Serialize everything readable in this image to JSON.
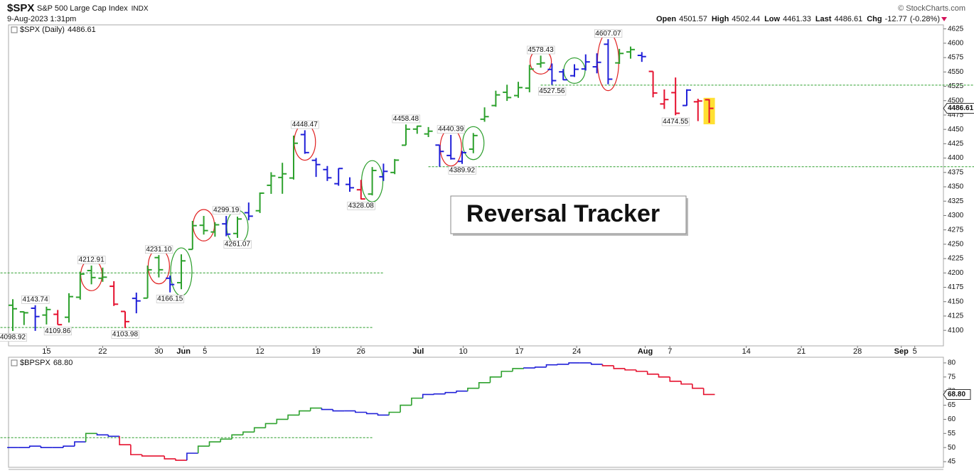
{
  "chart_data": [
    {
      "type": "ohlc",
      "title": "$SPX",
      "subtitle": "S&P 500 Large Cap Index",
      "exchange": "INDX",
      "date": "9-Aug-2023 1:31pm",
      "credit": "© StockCharts.com",
      "quote_labels": [
        "Open",
        "High",
        "Low",
        "Last",
        "Chg"
      ],
      "change": -12.77,
      "change_label": "(-0.28%)",
      "annotation": "Reversal Tracker",
      "x": [
        0,
        1,
        2,
        3,
        4,
        5,
        6,
        7,
        8,
        9,
        10,
        11,
        12,
        13,
        14,
        15,
        16,
        17,
        18,
        19,
        20,
        21,
        22,
        23,
        24,
        25,
        26,
        27,
        28,
        29,
        30,
        31,
        32,
        33,
        34,
        35,
        36,
        37,
        38,
        39,
        40,
        41,
        42,
        43,
        44,
        45,
        46,
        47,
        48,
        49,
        50,
        51,
        52,
        53,
        54,
        55,
        56,
        57,
        58,
        59,
        60,
        61,
        62
      ],
      "xlim": [
        -0.38,
        82.85
      ],
      "xticks": [
        {
          "value": 3,
          "label": "15"
        },
        {
          "value": 8,
          "label": "22"
        },
        {
          "value": 13,
          "label": "30"
        },
        {
          "value": 15.2,
          "label": "Jun"
        },
        {
          "value": 17.1,
          "label": "5"
        },
        {
          "value": 22,
          "label": "12"
        },
        {
          "value": 27,
          "label": "19"
        },
        {
          "value": 31,
          "label": "26"
        },
        {
          "value": 36.1,
          "label": "Jul"
        },
        {
          "value": 40.1,
          "label": "10"
        },
        {
          "value": 45.1,
          "label": "17"
        },
        {
          "value": 50.2,
          "label": "24"
        },
        {
          "value": 56.3,
          "label": "Aug"
        },
        {
          "value": 58.5,
          "label": "7"
        },
        {
          "value": 65.3,
          "label": "14"
        },
        {
          "value": 70.2,
          "label": "21"
        },
        {
          "value": 75.2,
          "label": "28"
        },
        {
          "value": 79.1,
          "label": "Sep"
        },
        {
          "value": 80.3,
          "label": "5"
        }
      ],
      "ylim": [
        4073,
        4632
      ],
      "yticks": [
        4100,
        4125,
        4150,
        4175,
        4200,
        4225,
        4250,
        4275,
        4300,
        4325,
        4350,
        4375,
        4400,
        4425,
        4450,
        4475,
        4500,
        4525,
        4550,
        4575,
        4600,
        4625
      ],
      "series": [
        {
          "name": "$SPX (Daily)",
          "open": [
            4143.74,
            4132.24,
            4138.54,
            4126.65,
            4127.95,
            4122.85,
            4157.68,
            4204.15,
            4190.78,
            4176.8,
            4132.96,
            4155.71,
            4156.16,
            4226.71,
            4190.74,
            4183.03,
            4241.01,
            4282.99,
            4271.34,
            4285.47,
            4268.69,
            4304.88,
            4308.32,
            4352.61,
            4366.29,
            4365.33,
            4440.95,
            4396.11,
            4380.01,
            4355.4,
            4354.17,
            4344.84,
            4337.36,
            4367.48,
            4374.94,
            4422.44,
            4450.48,
            4442.04,
            4422.62,
            4404.54,
            4394.23,
            4415.55,
            4467.69,
            4491.5,
            4514.61,
            4508.86,
            4521.78,
            4563.87,
            4554.38,
            4550.16,
            4543.39,
            4555.19,
            4558.96,
            4598.26,
            4565.75,
            4584.82,
            4578.83,
            4550.93,
            4494.27,
            4513.96,
            4491.58,
            4498.03,
            4501.57
          ],
          "high": [
            4154.28,
            4132.8,
            4143.74,
            4141.25,
            4135.54,
            4164.67,
            4202.2,
            4212.91,
            4209.22,
            4185.68,
            4132.96,
            4165.74,
            4212.87,
            4231.1,
            4195.44,
            4232.43,
            4290.67,
            4299.28,
            4288.33,
            4299.19,
            4298.01,
            4322.62,
            4340.13,
            4375.37,
            4391.82,
            4439.2,
            4448.47,
            4400.15,
            4386.22,
            4382.25,
            4366.55,
            4362.06,
            4384.42,
            4390.35,
            4398.39,
            4458.48,
            4456.46,
            4454.06,
            4422.62,
            4440.39,
            4412.6,
            4443.64,
            4488.34,
            4517.38,
            4527.76,
            4532.85,
            4562.3,
            4578.43,
            4564.74,
            4555,
            4563.41,
            4580.62,
            4582.47,
            4607.07,
            4590.16,
            4594.22,
            4584.62,
            4550.93,
            4519.49,
            4540.34,
            4519.84,
            4503.31,
            4502.44
          ],
          "low": [
            4098.92,
            4109.29,
            4099.12,
            4110.27,
            4109.86,
            4113.62,
            4153.5,
            4180.2,
            4184.5,
            4142.54,
            4103.98,
            4129.73,
            4156.16,
            4192.18,
            4166.15,
            4171.64,
            4241.01,
            4266.82,
            4263.09,
            4263.96,
            4261.07,
            4291.7,
            4304.37,
            4337.71,
            4337.85,
            4362.6,
            4407.44,
            4367.19,
            4360.14,
            4351.82,
            4341.34,
            4328.08,
            4335,
            4360.22,
            4371.97,
            4422.44,
            4442.29,
            4436.61,
            4385.05,
            4397.4,
            4389.92,
            4408.46,
            4463.23,
            4489.36,
            4499.56,
            4504.9,
            4514.59,
            4557.48,
            4527.56,
            4535.79,
            4541.29,
            4552.42,
            4547.58,
            4528.56,
            4564.01,
            4573.14,
            4567.53,
            4505.75,
            4485.54,
            4474.55,
            4491.15,
            4464.39,
            4461.33
          ],
          "close": [
            4137.64,
            4130.62,
            4124.08,
            4136.28,
            4109.9,
            4158.77,
            4198.05,
            4191.98,
            4192.63,
            4145.58,
            4115.24,
            4151.28,
            4205.45,
            4205.52,
            4179.83,
            4221.02,
            4282.37,
            4273.79,
            4283.85,
            4267.52,
            4293.93,
            4298.86,
            4338.93,
            4369.01,
            4372.59,
            4425.84,
            4409.59,
            4388.71,
            4365.69,
            4381.89,
            4348.33,
            4328.82,
            4378.41,
            4376.86,
            4396.44,
            4450.38,
            4455.59,
            4446.82,
            4411.59,
            4398.95,
            4409.53,
            4439.26,
            4472.16,
            4510.04,
            4505.42,
            4522.79,
            4554.98,
            4565.72,
            4534.87,
            4536.34,
            4554.64,
            4567.46,
            4566.75,
            4537.41,
            4582.23,
            4588.96,
            4576.73,
            4513.39,
            4501.89,
            4478.03,
            4518.44,
            4499.38,
            4486.61
          ],
          "colors": [
            "#2da12d",
            "#2da12d",
            "#2020d8",
            "#2da12d",
            "#e5112f",
            "#2da12d",
            "#2da12d",
            "#2da12d",
            "#2da12d",
            "#e5112f",
            "#e5112f",
            "#2020d8",
            "#2da12d",
            "#2da12d",
            "#2020d8",
            "#2da12d",
            "#2da12d",
            "#2da12d",
            "#2da12d",
            "#2020d8",
            "#2da12d",
            "#2020d8",
            "#2da12d",
            "#2da12d",
            "#2da12d",
            "#2da12d",
            "#2020d8",
            "#2020d8",
            "#2020d8",
            "#2020d8",
            "#2020d8",
            "#e5112f",
            "#2da12d",
            "#2020d8",
            "#2da12d",
            "#2da12d",
            "#2da12d",
            "#2da12d",
            "#2020d8",
            "#2020d8",
            "#2020d8",
            "#2da12d",
            "#2da12d",
            "#2da12d",
            "#2da12d",
            "#2da12d",
            "#2da12d",
            "#2da12d",
            "#2020d8",
            "#2020d8",
            "#2020d8",
            "#2020d8",
            "#2020d8",
            "#2020d8",
            "#2da12d",
            "#2da12d",
            "#2020d8",
            "#e5112f",
            "#e5112f",
            "#e5112f",
            "#2020d8",
            "#e5112f",
            "#e5112f"
          ],
          "high_labels": [
            null,
            null,
            "4143.74",
            null,
            null,
            null,
            null,
            "4212.91",
            null,
            null,
            null,
            null,
            null,
            "4231.10",
            null,
            null,
            null,
            null,
            null,
            "4299.19",
            null,
            null,
            null,
            null,
            null,
            null,
            "4448.47",
            null,
            null,
            null,
            null,
            null,
            null,
            null,
            null,
            "4458.48",
            null,
            null,
            null,
            "4440.39",
            null,
            null,
            null,
            null,
            null,
            null,
            null,
            "4578.43",
            null,
            null,
            null,
            null,
            null,
            "4607.07",
            null,
            null,
            null,
            null,
            null,
            null,
            null,
            null,
            null
          ],
          "low_labels": [
            "4098.92",
            null,
            null,
            null,
            "4109.86",
            null,
            null,
            null,
            null,
            null,
            "4103.98",
            null,
            null,
            null,
            "4166.15",
            null,
            null,
            null,
            null,
            null,
            "4261.07",
            null,
            null,
            null,
            null,
            null,
            null,
            null,
            null,
            null,
            null,
            "4328.08",
            null,
            null,
            null,
            null,
            null,
            null,
            null,
            null,
            "4389.92",
            null,
            null,
            null,
            null,
            null,
            null,
            null,
            "4527.56",
            null,
            null,
            null,
            null,
            null,
            null,
            null,
            null,
            null,
            null,
            "4474.55",
            null,
            null,
            null
          ]
        }
      ],
      "highlight_last": "#ffe033",
      "level_color": "#2a9d2a",
      "levels": [
        {
          "value": 4200,
          "from": -1.1,
          "to": 33
        },
        {
          "value": 4105,
          "from": -1.1,
          "to": 32
        },
        {
          "value": 4527,
          "from": 47,
          "to": 86.3
        },
        {
          "value": 4385,
          "from": 37,
          "to": 86.3
        }
      ],
      "circles": [
        {
          "x": 7,
          "color": "#e02020"
        },
        {
          "x": 13,
          "color": "#e02020"
        },
        {
          "x": 15,
          "color": "#2a9d2a"
        },
        {
          "x": 17,
          "color": "#e02020"
        },
        {
          "x": 20,
          "color": "#2a9d2a"
        },
        {
          "x": 26,
          "color": "#e02020"
        },
        {
          "x": 32,
          "color": "#2a9d2a"
        },
        {
          "x": 39,
          "color": "#e02020"
        },
        {
          "x": 41,
          "color": "#2a9d2a"
        },
        {
          "x": 47,
          "color": "#e02020"
        },
        {
          "x": 50,
          "color": "#2a9d2a"
        },
        {
          "x": 53,
          "color": "#e02020"
        }
      ]
    },
    {
      "type": "line",
      "x": [
        0,
        1,
        2,
        3,
        4,
        5,
        6,
        7,
        8,
        9,
        10,
        11,
        12,
        13,
        14,
        15,
        16,
        17,
        18,
        19,
        20,
        21,
        22,
        23,
        24,
        25,
        26,
        27,
        28,
        29,
        30,
        31,
        32,
        33,
        34,
        35,
        36,
        37,
        38,
        39,
        40,
        41,
        42,
        43,
        44,
        45,
        46,
        47,
        48,
        49,
        50,
        51,
        52,
        53,
        54,
        55,
        56,
        57,
        58,
        59,
        60,
        61,
        62
      ],
      "xlim": [
        -0.38,
        82.85
      ],
      "ylim": [
        43,
        82
      ],
      "yticks": [
        45,
        50,
        55,
        60,
        65,
        70,
        75,
        80
      ],
      "series": [
        {
          "name": "$BPSPX",
          "values": [
            50,
            50,
            50.5,
            50,
            50,
            50.5,
            52,
            55,
            54.5,
            54,
            51,
            47.5,
            47,
            47,
            46,
            45.5,
            48,
            50.5,
            52,
            53,
            54.5,
            55.5,
            57,
            58.5,
            60,
            61.5,
            63,
            64,
            63.5,
            63,
            63,
            62.5,
            62,
            61.5,
            62.5,
            65,
            67.5,
            68.8,
            69,
            69.5,
            70,
            71,
            73,
            75,
            77,
            78,
            78.2,
            78.5,
            79.3,
            79.5,
            80,
            80,
            79.5,
            79,
            78,
            77.5,
            77,
            76,
            75,
            73.5,
            72.5,
            71,
            68.8
          ],
          "value_labels": [
            null,
            null,
            null,
            null,
            null,
            null,
            null,
            null,
            null,
            null,
            null,
            null,
            null,
            null,
            null,
            null,
            null,
            null,
            null,
            null,
            null,
            null,
            null,
            null,
            null,
            null,
            null,
            null,
            null,
            null,
            null,
            null,
            null,
            null,
            null,
            null,
            null,
            null,
            null,
            null,
            null,
            null,
            null,
            null,
            null,
            null,
            null,
            null,
            null,
            null,
            null,
            null,
            null,
            null,
            null,
            null,
            null,
            null,
            null,
            null,
            null,
            null,
            "68.80"
          ],
          "colors": [
            "#2020d8",
            "#2020d8",
            "#2020d8",
            "#2020d8",
            "#2020d8",
            "#2020d8",
            "#2020d8",
            "#2da12d",
            "#2020d8",
            "#2020d8",
            "#e5112f",
            "#e5112f",
            "#e5112f",
            "#e5112f",
            "#e5112f",
            "#e5112f",
            "#2020d8",
            "#2da12d",
            "#2da12d",
            "#2da12d",
            "#2da12d",
            "#2da12d",
            "#2da12d",
            "#2da12d",
            "#2da12d",
            "#2da12d",
            "#2da12d",
            "#2da12d",
            "#2020d8",
            "#2020d8",
            "#2020d8",
            "#2020d8",
            "#2020d8",
            "#2020d8",
            "#2da12d",
            "#2da12d",
            "#2da12d",
            "#2020d8",
            "#2020d8",
            "#2020d8",
            "#2020d8",
            "#2da12d",
            "#2da12d",
            "#2da12d",
            "#2da12d",
            "#2da12d",
            "#2020d8",
            "#2020d8",
            "#2020d8",
            "#2020d8",
            "#2020d8",
            "#2020d8",
            "#2020d8",
            "#e5112f",
            "#e5112f",
            "#e5112f",
            "#e5112f",
            "#e5112f",
            "#e5112f",
            "#e5112f",
            "#e5112f",
            "#e5112f",
            "#e5112f"
          ]
        }
      ],
      "level_color": "#2a9d2a",
      "levels": [
        {
          "value": 53.5,
          "from": -1.1,
          "to": 32
        }
      ]
    }
  ]
}
